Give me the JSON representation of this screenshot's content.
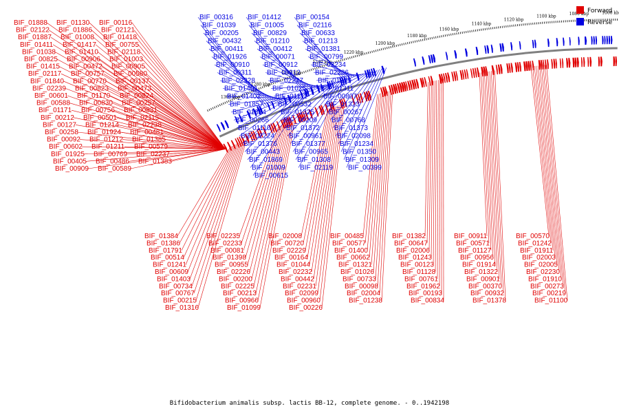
{
  "caption": "Bifidobacterium animalis subsp. lactis BB-12, complete genome. - 0..1942198",
  "legend": [
    {
      "label": "Forward",
      "color": "#e00000"
    },
    {
      "label": "Reverse",
      "color": "#0000e0"
    }
  ],
  "ruler_labels": [
    "1300 kbp",
    "1280 kbp",
    "1260 kbp",
    "1240 kbp",
    "1220 kbp",
    "1200 kbp",
    "1180 kbp",
    "1160 kbp",
    "1140 kbp",
    "1120 kbp",
    "1100 kbp",
    "1080 kbp",
    "1060 kbp"
  ],
  "colors": {
    "forward": "#e00000",
    "reverse": "#0000e0",
    "backbone": "#808080"
  },
  "reverse_labels": [
    "BIF_00316",
    "BIF_01412",
    "BIF_00154",
    "BIF_01039",
    "BIF_01005",
    "BIF_02116",
    "BIF_00205",
    "BIF_00829",
    "BIF_00633",
    "BIF_00432",
    "BIF_01210",
    "BIF_01213",
    "BIF_00411",
    "BIF_00412",
    "BIF_01381",
    "BIF_01926",
    "BIF_00071",
    "BIF_00799",
    "BIF_00910",
    "BIF_00912",
    "BIF_02234",
    "BIF_00311",
    "BIF_00312",
    "BIF_02236",
    "BIF_02228",
    "BIF_02227",
    "BIF_01399",
    "BIF_01401",
    "BIF_01025",
    "BIF_01311",
    "BIF_01402",
    "BIF_01111",
    "BIF_00807",
    "BIF_01857",
    "BIF_00532",
    "BIF_01323",
    "BIF_01324",
    "BIF_01325",
    "BIF_00267",
    "BIF_00266",
    "BIF_00209",
    "BIF_00768",
    "BIF_01110",
    "BIF_01372",
    "BIF_01373",
    "BIF_02224",
    "BIF_00961",
    "BIF_02098",
    "BIF_01376",
    "BIF_01377",
    "BIF_01234",
    "BIF_00443",
    "BIF_00965",
    "BIF_01350",
    "BIF_01869",
    "BIF_01308",
    "BIF_01309",
    "BIF_01009",
    "BIF_02119",
    "BIF_00399",
    "BIF_00615"
  ],
  "forward_labels_left": [
    "BIF_01888",
    "BIF_01130",
    "BIF_00116",
    "BIF_02122",
    "BIF_01886",
    "BIF_02121",
    "BIF_01887",
    "BIF_01008",
    "BIF_01418",
    "BIF_01411",
    "BIF_01417",
    "BIF_00755",
    "BIF_01038",
    "BIF_01410",
    "BIF_02118",
    "BIF_00825",
    "BIF_00906",
    "BIF_01003",
    "BIF_01415",
    "BIF_00472",
    "BIF_00905",
    "BIF_02117",
    "BIF_00757",
    "BIF_00580",
    "BIF_01840",
    "BIF_00770",
    "BIF_00137",
    "BIF_02239",
    "BIF_00823",
    "BIF_00473",
    "BIF_00601",
    "BIF_01170",
    "BIF_00824",
    "BIF_00588",
    "BIF_00830",
    "BIF_00257",
    "BIF_01171",
    "BIF_00756",
    "BIF_00831",
    "BIF_00212",
    "BIF_00501",
    "BIF_02115",
    "BIF_00127",
    "BIF_01214",
    "BIF_02238",
    "BIF_00258",
    "BIF_01924",
    "BIF_00481",
    "BIF_00092",
    "BIF_01212",
    "BIF_01385",
    "BIF_00602",
    "BIF_01211",
    "BIF_00579",
    "BIF_01925",
    "BIF_00769",
    "BIF_02237",
    "BIF_00405",
    "BIF_00486",
    "BIF_01383",
    "BIF_00909",
    "BIF_00589"
  ],
  "forward_labels_lower": [
    "BIF_01384",
    "BIF_02235",
    "BIF_02008",
    "BIF_00485",
    "BIF_01382",
    "BIF_00911",
    "BIF_00570",
    "BIF_01386",
    "BIF_02233",
    "BIF_00720",
    "BIF_00577",
    "BIF_00647",
    "BIF_00571",
    "BIF_01242",
    "BIF_01791",
    "BIF_00081",
    "BIF_02229",
    "BIF_01400",
    "BIF_02006",
    "BIF_01127",
    "BIF_01911",
    "BIF_00514",
    "BIF_01398",
    "BIF_00164",
    "BIF_00662",
    "BIF_01243",
    "BIF_00956",
    "BIF_02003",
    "BIF_01241",
    "BIF_00955",
    "BIF_01044",
    "BIF_01321",
    "BIF_00123",
    "BIF_01914",
    "BIF_02005",
    "BIF_00609",
    "BIF_02226",
    "BIF_02232",
    "BIF_01026",
    "BIF_01128",
    "BIF_01322",
    "BIF_02230",
    "BIF_01403",
    "BIF_00200",
    "BIF_00442",
    "BIF_00733",
    "BIF_00761",
    "BIF_00901",
    "BIF_01910",
    "BIF_00734",
    "BIF_02225",
    "BIF_02231",
    "BIF_00098",
    "BIF_01962",
    "BIF_00370",
    "BIF_00273",
    "BIF_00767",
    "BIF_00213",
    "BIF_02099",
    "BIF_02004",
    "BIF_00193",
    "BIF_00932",
    "BIF_00219",
    "BIF_00215",
    "BIF_00966",
    "BIF_00960",
    "BIF_01238",
    "BIF_00834",
    "BIF_01378",
    "BIF_01100",
    "BIF_01316",
    "BIF_01099",
    "BIF_00226"
  ]
}
